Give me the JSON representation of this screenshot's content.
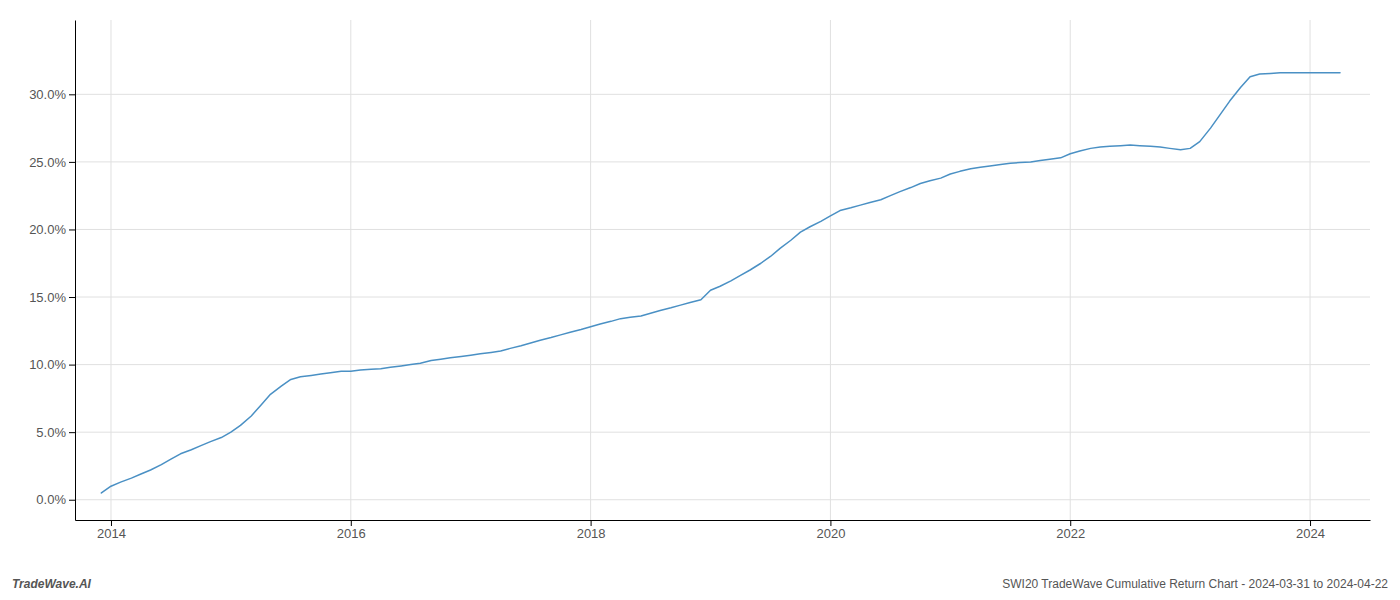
{
  "chart_data": {
    "type": "line",
    "annotations": [
      "TradeWave.AI",
      "SWI20 TradeWave Cumulative Return Chart - 2024-03-31 to 2024-04-22"
    ],
    "color": "#4a90c4",
    "grid": true,
    "x": [
      2013.92,
      2014.0,
      2014.08,
      2014.17,
      2014.25,
      2014.33,
      2014.42,
      2014.5,
      2014.58,
      2014.67,
      2014.75,
      2014.83,
      2014.92,
      2015.0,
      2015.08,
      2015.17,
      2015.25,
      2015.33,
      2015.42,
      2015.5,
      2015.58,
      2015.67,
      2015.75,
      2015.83,
      2015.92,
      2016.0,
      2016.08,
      2016.17,
      2016.25,
      2016.33,
      2016.42,
      2016.5,
      2016.58,
      2016.67,
      2016.75,
      2016.83,
      2016.92,
      2017.0,
      2017.08,
      2017.17,
      2017.25,
      2017.33,
      2017.42,
      2017.5,
      2017.58,
      2017.67,
      2017.75,
      2017.83,
      2017.92,
      2018.0,
      2018.08,
      2018.17,
      2018.25,
      2018.33,
      2018.42,
      2018.5,
      2018.58,
      2018.67,
      2018.75,
      2018.83,
      2018.92,
      2019.0,
      2019.08,
      2019.17,
      2019.25,
      2019.33,
      2019.42,
      2019.5,
      2019.58,
      2019.67,
      2019.75,
      2019.83,
      2019.92,
      2020.0,
      2020.08,
      2020.17,
      2020.25,
      2020.33,
      2020.42,
      2020.5,
      2020.58,
      2020.67,
      2020.75,
      2020.83,
      2020.92,
      2021.0,
      2021.08,
      2021.17,
      2021.25,
      2021.33,
      2021.42,
      2021.5,
      2021.58,
      2021.67,
      2021.75,
      2021.83,
      2021.92,
      2022.0,
      2022.08,
      2022.17,
      2022.25,
      2022.33,
      2022.42,
      2022.5,
      2022.58,
      2022.67,
      2022.75,
      2022.83,
      2022.92,
      2023.0,
      2023.08,
      2023.17,
      2023.25,
      2023.33,
      2023.42,
      2023.5,
      2023.58,
      2023.67,
      2023.75,
      2023.83,
      2023.92,
      2024.0,
      2024.08,
      2024.17,
      2024.25
    ],
    "values": [
      0.5,
      1.0,
      1.3,
      1.6,
      1.9,
      2.2,
      2.6,
      3.0,
      3.4,
      3.7,
      4.0,
      4.3,
      4.6,
      5.0,
      5.5,
      6.2,
      7.0,
      7.8,
      8.4,
      8.9,
      9.1,
      9.2,
      9.3,
      9.4,
      9.5,
      9.5,
      9.6,
      9.65,
      9.7,
      9.8,
      9.9,
      10.0,
      10.1,
      10.3,
      10.4,
      10.5,
      10.6,
      10.7,
      10.8,
      10.9,
      11.0,
      11.2,
      11.4,
      11.6,
      11.8,
      12.0,
      12.2,
      12.4,
      12.6,
      12.8,
      13.0,
      13.2,
      13.4,
      13.5,
      13.6,
      13.8,
      14.0,
      14.2,
      14.4,
      14.6,
      14.8,
      15.5,
      15.8,
      16.2,
      16.6,
      17.0,
      17.5,
      18.0,
      18.6,
      19.2,
      19.8,
      20.2,
      20.6,
      21.0,
      21.4,
      21.6,
      21.8,
      22.0,
      22.2,
      22.5,
      22.8,
      23.1,
      23.4,
      23.6,
      23.8,
      24.1,
      24.3,
      24.5,
      24.6,
      24.7,
      24.8,
      24.9,
      24.95,
      25.0,
      25.1,
      25.2,
      25.3,
      25.6,
      25.8,
      26.0,
      26.1,
      26.15,
      26.2,
      26.25,
      26.2,
      26.15,
      26.1,
      26.0,
      25.9,
      26.0,
      26.5,
      27.5,
      28.5,
      29.5,
      30.5,
      31.3,
      31.5,
      31.55,
      31.6,
      31.6,
      31.6,
      31.6,
      31.6,
      31.6,
      31.6
    ],
    "xlim": [
      2013.7,
      2024.5
    ],
    "ylim": [
      -1.5,
      35.5
    ],
    "xticks": [
      2014,
      2016,
      2018,
      2020,
      2022,
      2024
    ],
    "yticks": [
      {
        "value": 0.0,
        "label": "0.0%"
      },
      {
        "value": 5.0,
        "label": "5.0%"
      },
      {
        "value": 10.0,
        "label": "10.0%"
      },
      {
        "value": 15.0,
        "label": "15.0%"
      },
      {
        "value": 20.0,
        "label": "20.0%"
      },
      {
        "value": 25.0,
        "label": "25.0%"
      },
      {
        "value": 30.0,
        "label": "30.0%"
      }
    ]
  }
}
